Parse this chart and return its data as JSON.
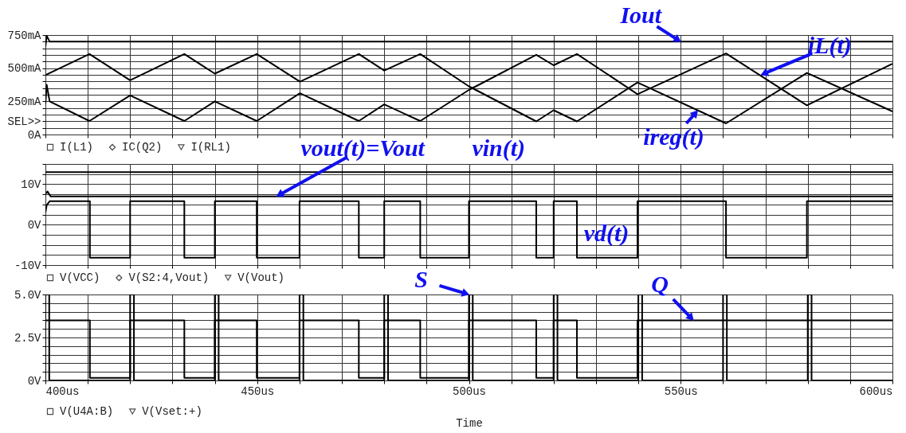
{
  "chart_data": [
    {
      "type": "line",
      "xlim": [
        400,
        600
      ],
      "xticks": [
        {
          "value": 400,
          "label": null
        },
        {
          "value": 410,
          "label": null
        },
        {
          "value": 420,
          "label": null
        },
        {
          "value": 430,
          "label": null
        },
        {
          "value": 440,
          "label": null
        },
        {
          "value": 450,
          "label": null
        },
        {
          "value": 460,
          "label": null
        },
        {
          "value": 470,
          "label": null
        },
        {
          "value": 480,
          "label": null
        },
        {
          "value": 490,
          "label": null
        },
        {
          "value": 500,
          "label": null
        },
        {
          "value": 510,
          "label": null
        },
        {
          "value": 520,
          "label": null
        },
        {
          "value": 530,
          "label": null
        },
        {
          "value": 540,
          "label": null
        },
        {
          "value": 550,
          "label": null
        },
        {
          "value": 560,
          "label": null
        },
        {
          "value": 570,
          "label": null
        },
        {
          "value": 580,
          "label": null
        },
        {
          "value": 590,
          "label": null
        },
        {
          "value": 600,
          "label": null
        }
      ],
      "ylim": [
        0,
        750
      ],
      "yticks": [
        {
          "value": 0,
          "label": "0A"
        },
        {
          "value": 50,
          "label": null
        },
        {
          "value": 100,
          "label": "SEL>>"
        },
        {
          "value": 150,
          "label": null
        },
        {
          "value": 200,
          "label": null
        },
        {
          "value": 250,
          "label": "250mA"
        },
        {
          "value": 300,
          "label": null
        },
        {
          "value": 350,
          "label": null
        },
        {
          "value": 400,
          "label": null
        },
        {
          "value": 450,
          "label": null
        },
        {
          "value": 500,
          "label": "500mA"
        },
        {
          "value": 550,
          "label": null
        },
        {
          "value": 600,
          "label": null
        },
        {
          "value": 650,
          "label": null
        },
        {
          "value": 700,
          "label": null
        },
        {
          "value": 750,
          "label": "750mA"
        }
      ],
      "grid": true,
      "legend": "bottom",
      "tick_labels": "y",
      "series": [
        {
          "name": "I(L1)",
          "color": "#000000",
          "x": [
            400,
            410.4,
            420,
            432.8,
            440,
            449.9,
            460.1,
            474,
            480,
            488.5,
            500,
            515.9,
            520,
            525.5,
            539.8,
            560.7,
            579.8,
            599.4,
            600
          ],
          "values": [
            448,
            607,
            409,
            607,
            459,
            607,
            398,
            607,
            482,
            607,
            363,
            99,
            183,
            99,
            392,
            84,
            464,
            183,
            174
          ]
        },
        {
          "name": "IC(Q2)",
          "color": "#000000",
          "x": [
            400,
            400.3,
            401,
            410.4,
            420,
            432.8,
            440,
            449.9,
            460.1,
            474,
            480,
            488.5,
            500,
            515.9,
            520,
            525.5,
            539.8,
            560.7,
            579.8,
            599.4,
            600
          ],
          "values": [
            230,
            375,
            250,
            102,
            295,
            102,
            250,
            102,
            311,
            102,
            227,
            102,
            336,
            601,
            522,
            607,
            304,
            611,
            220,
            524,
            533
          ]
        },
        {
          "name": "I(RL1)",
          "color": "#000000",
          "x": [
            400,
            400.3,
            401,
            600
          ],
          "values": [
            660,
            745,
            700,
            700
          ]
        }
      ],
      "annotations": [
        {
          "text": "Iout",
          "x": 550,
          "y": 700
        },
        {
          "text": "iL(t)",
          "x": 569,
          "y": 450
        },
        {
          "text": "ireg(t)",
          "x": 554,
          "y": 180
        }
      ]
    },
    {
      "type": "line",
      "xlim": [
        400,
        600
      ],
      "xticks": [
        {
          "value": 400,
          "label": null
        },
        {
          "value": 410,
          "label": null
        },
        {
          "value": 420,
          "label": null
        },
        {
          "value": 430,
          "label": null
        },
        {
          "value": 440,
          "label": null
        },
        {
          "value": 450,
          "label": null
        },
        {
          "value": 460,
          "label": null
        },
        {
          "value": 470,
          "label": null
        },
        {
          "value": 480,
          "label": null
        },
        {
          "value": 490,
          "label": null
        },
        {
          "value": 500,
          "label": null
        },
        {
          "value": 510,
          "label": null
        },
        {
          "value": 520,
          "label": null
        },
        {
          "value": 530,
          "label": null
        },
        {
          "value": 540,
          "label": null
        },
        {
          "value": 550,
          "label": null
        },
        {
          "value": 560,
          "label": null
        },
        {
          "value": 570,
          "label": null
        },
        {
          "value": 580,
          "label": null
        },
        {
          "value": 590,
          "label": null
        },
        {
          "value": 600,
          "label": null
        }
      ],
      "ylim": [
        -10,
        15
      ],
      "yticks": [
        {
          "value": -10,
          "label": "-10V"
        },
        {
          "value": -7.5,
          "label": null
        },
        {
          "value": -5,
          "label": null
        },
        {
          "value": -2.5,
          "label": null
        },
        {
          "value": 0,
          "label": "0V"
        },
        {
          "value": 2.5,
          "label": null
        },
        {
          "value": 5,
          "label": null
        },
        {
          "value": 7.5,
          "label": null
        },
        {
          "value": 10,
          "label": "10V"
        },
        {
          "value": 12.5,
          "label": null
        },
        {
          "value": 15,
          "label": null
        }
      ],
      "grid": true,
      "legend": "bottom",
      "tick_labels": "y",
      "series": [
        {
          "name": "V(VCC)",
          "color": "#000000",
          "x": [
            400,
            600
          ],
          "values": [
            13,
            13
          ]
        },
        {
          "name": "V(S2:4,Vout)",
          "color": "#000000",
          "x": [
            400,
            400.3,
            401,
            410.5,
            410.5,
            420,
            420,
            432.8,
            432.8,
            440,
            440,
            449.9,
            449.9,
            460,
            460,
            474,
            474,
            480,
            480,
            488.5,
            488.5,
            500,
            500,
            515.9,
            515.9,
            520,
            520,
            525.5,
            525.5,
            539.8,
            539.8,
            560.7,
            560.7,
            579.8,
            579.8,
            600
          ],
          "values": [
            3,
            4.8,
            5.8,
            5.8,
            -8.2,
            -8.2,
            5.8,
            5.8,
            -8.2,
            -8.2,
            5.8,
            5.8,
            -8.2,
            -8.2,
            5.8,
            5.8,
            -8.2,
            -8.2,
            5.8,
            5.8,
            -8.2,
            -8.2,
            5.8,
            5.8,
            -8.2,
            -8.2,
            5.8,
            5.8,
            -8.2,
            -8.2,
            5.8,
            5.8,
            -8.2,
            -8.2,
            5.8,
            5.8
          ]
        },
        {
          "name": "V(Vout)",
          "color": "#000000",
          "x": [
            400,
            400.5,
            401.2,
            600
          ],
          "values": [
            7.6,
            8.2,
            7,
            7
          ]
        }
      ],
      "annotations": [
        {
          "text": "vout(t)=Vout",
          "x": 454.6,
          "y": 7
        },
        {
          "text": "vin(t)",
          "x": 507,
          "y": 13
        },
        "vd(t)"
      ]
    },
    {
      "type": "line",
      "xlim": [
        400,
        600
      ],
      "xticks": [
        {
          "value": 400,
          "label": "400us"
        },
        {
          "value": 410,
          "label": null
        },
        {
          "value": 420,
          "label": null
        },
        {
          "value": 430,
          "label": null
        },
        {
          "value": 440,
          "label": null
        },
        {
          "value": 450,
          "label": "450us"
        },
        {
          "value": 460,
          "label": null
        },
        {
          "value": 470,
          "label": null
        },
        {
          "value": 480,
          "label": null
        },
        {
          "value": 490,
          "label": null
        },
        {
          "value": 500,
          "label": "500us"
        },
        {
          "value": 510,
          "label": null
        },
        {
          "value": 520,
          "label": null
        },
        {
          "value": 530,
          "label": null
        },
        {
          "value": 540,
          "label": null
        },
        {
          "value": 550,
          "label": "550us"
        },
        {
          "value": 560,
          "label": null
        },
        {
          "value": 570,
          "label": null
        },
        {
          "value": 580,
          "label": null
        },
        {
          "value": 590,
          "label": null
        },
        {
          "value": 600,
          "label": "600us"
        }
      ],
      "ylim": [
        0,
        5
      ],
      "yticks": [
        {
          "value": 0,
          "label": "0V"
        },
        {
          "value": 0.5,
          "label": null
        },
        {
          "value": 1,
          "label": null
        },
        {
          "value": 1.5,
          "label": null
        },
        {
          "value": 2,
          "label": null
        },
        {
          "value": 2.5,
          "label": "2.5V"
        },
        {
          "value": 3,
          "label": null
        },
        {
          "value": 3.5,
          "label": null
        },
        {
          "value": 4,
          "label": null
        },
        {
          "value": 4.5,
          "label": null
        },
        {
          "value": 5,
          "label": "5.0V"
        }
      ],
      "grid": true,
      "legend": "bottom",
      "xlabel": "Time",
      "series": [
        {
          "name": "V(U4A:B)",
          "color": "#000000",
          "x": [
            400,
            410.5,
            410.5,
            420,
            420,
            432.8,
            432.8,
            440,
            440,
            449.9,
            449.9,
            460,
            460,
            474,
            474,
            480,
            480,
            488.5,
            488.5,
            500,
            500,
            515.9,
            515.9,
            520,
            520,
            525.5,
            525.5,
            539.8,
            539.8,
            600
          ],
          "values": [
            3.5,
            3.5,
            0.15,
            0.15,
            3.5,
            3.5,
            0.15,
            0.15,
            3.5,
            3.5,
            0.15,
            0.15,
            3.5,
            3.5,
            0.15,
            0.15,
            3.5,
            3.5,
            0.15,
            0.15,
            3.5,
            3.5,
            0.15,
            0.15,
            3.5,
            3.5,
            0.15,
            0.15,
            3.5,
            3.5
          ]
        },
        {
          "name": "V(Vset:+)",
          "color": "#000000",
          "x": [
            400,
            400,
            400.9,
            400.9,
            420,
            420,
            420.9,
            420.9,
            440,
            440,
            440.9,
            440.9,
            460,
            460,
            460.9,
            460.9,
            480,
            480,
            480.9,
            480.9,
            500,
            500,
            500.9,
            500.9,
            520,
            520,
            520.9,
            520.9,
            540,
            540,
            540.9,
            540.9,
            560,
            560,
            560.9,
            560.9,
            580,
            580,
            580.9,
            580.9,
            600
          ],
          "values": [
            0,
            5,
            5,
            0,
            0,
            5,
            5,
            0,
            0,
            5,
            5,
            0,
            0,
            5,
            5,
            0,
            0,
            5,
            5,
            0,
            0,
            5,
            5,
            0,
            0,
            5,
            5,
            0,
            0,
            5,
            5,
            0,
            0,
            5,
            5,
            0,
            0,
            5,
            5,
            0,
            0
          ]
        }
      ],
      "annotations": [
        {
          "text": "S",
          "x": 500,
          "y": 5
        },
        {
          "text": "Q",
          "x": 553,
          "y": 3.5
        }
      ]
    }
  ]
}
